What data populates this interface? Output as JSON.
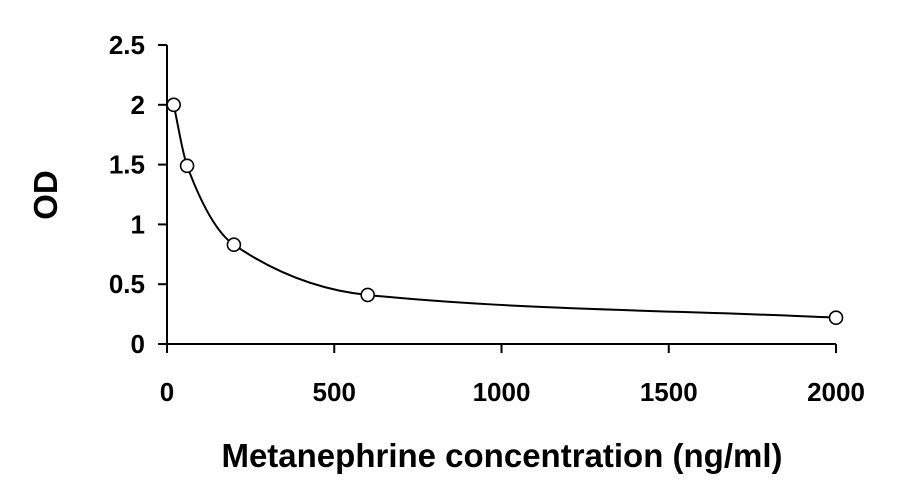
{
  "chart_data": {
    "type": "scatter",
    "title": "",
    "xlabel": "Metanephrine concentration (ng/ml)",
    "ylabel": "OD",
    "xlim": [
      0,
      2000
    ],
    "ylim": [
      0,
      2.5
    ],
    "x_ticks": [
      0,
      500,
      1000,
      1500,
      2000
    ],
    "x_tick_labels": [
      "0",
      "500",
      "1000",
      "1500",
      "2000"
    ],
    "y_ticks": [
      0,
      0.5,
      1,
      1.5,
      2,
      2.5
    ],
    "y_tick_labels": [
      "0",
      "0.5",
      "1",
      "1.5",
      "2",
      "2.5"
    ],
    "grid": false,
    "legend": "none",
    "series": [
      {
        "markers": "open-circle",
        "x": [
          20,
          60,
          200,
          600,
          2000
        ],
        "y": [
          2.0,
          1.49,
          0.83,
          0.41,
          0.22
        ],
        "fit_curve": true
      }
    ],
    "colors": {
      "axis": "#000000",
      "marker": "#000000",
      "curve": "#000000"
    }
  }
}
